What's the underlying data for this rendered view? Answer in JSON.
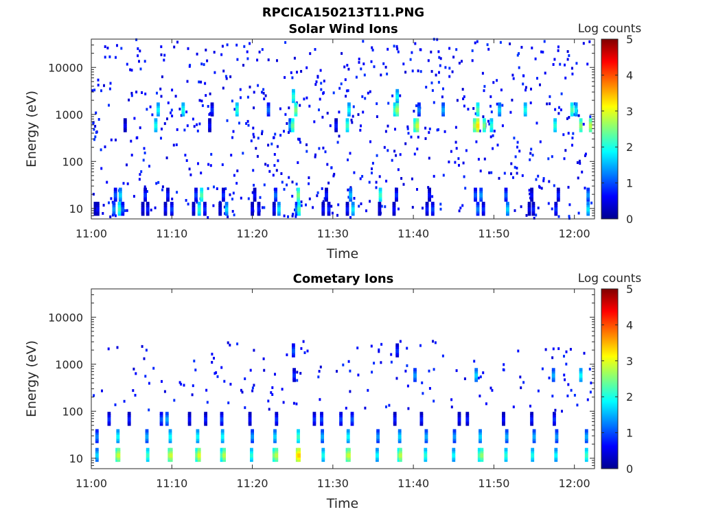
{
  "figure_title": "RPCICA150213T11.PNG",
  "chart_data": [
    {
      "type": "heatmap",
      "title": "Solar Wind Ions",
      "xlabel": "Time",
      "ylabel": "Energy (eV)",
      "x_ticks": [
        "11:00",
        "11:10",
        "11:20",
        "11:30",
        "11:40",
        "11:50",
        "12:00"
      ],
      "x_range_minutes": [
        0,
        62.5
      ],
      "y_scale": "log",
      "y_ticks": [
        "10",
        "100",
        "1000",
        "10000"
      ],
      "y_range": [
        6,
        40000
      ],
      "colorbar": {
        "label": "Log counts",
        "ticks": [
          "0",
          "1",
          "2",
          "3",
          "4",
          "5"
        ],
        "range": [
          0,
          5
        ],
        "colormap": "jet"
      },
      "energy_bands": [
        {
          "energy": 10,
          "points": [
            [
              0.3,
              0.5
            ],
            [
              0.6,
              0.8
            ],
            [
              2.6,
              1.5
            ],
            [
              3.3,
              2.3
            ],
            [
              3.7,
              1.2
            ],
            [
              6.2,
              0.6
            ],
            [
              6.8,
              0.9
            ],
            [
              9.0,
              0.8
            ],
            [
              9.8,
              1.1
            ],
            [
              12.5,
              0.7
            ],
            [
              13.2,
              2.2
            ],
            [
              13.9,
              1.0
            ],
            [
              15.8,
              0.6
            ],
            [
              16.6,
              1.8
            ],
            [
              19.8,
              0.7
            ],
            [
              20.6,
              0.9
            ],
            [
              22.5,
              0.8
            ],
            [
              23.1,
              1.9
            ],
            [
              25.3,
              1.4
            ],
            [
              25.6,
              2.4
            ],
            [
              28.6,
              0.8
            ],
            [
              29.3,
              1.0
            ],
            [
              31.6,
              0.9
            ],
            [
              32.3,
              1.9
            ],
            [
              35.6,
              0.6
            ],
            [
              37.4,
              0.8
            ],
            [
              41.5,
              0.9
            ],
            [
              42.2,
              1.1
            ],
            [
              47.8,
              1.4
            ],
            [
              48.5,
              1.0
            ],
            [
              51.5,
              1.8
            ],
            [
              54.2,
              0.7
            ],
            [
              54.7,
              0.9
            ],
            [
              57.5,
              1.0
            ],
            [
              61.5,
              1.9
            ]
          ]
        },
        {
          "energy": 20,
          "points": [
            [
              2.8,
              1.2
            ],
            [
              3.4,
              1.8
            ],
            [
              6.5,
              1.0
            ],
            [
              9.3,
              0.9
            ],
            [
              12.8,
              1.1
            ],
            [
              13.5,
              2.4
            ],
            [
              16.2,
              1.0
            ],
            [
              20.1,
              0.8
            ],
            [
              22.7,
              1.3
            ],
            [
              25.5,
              2.6
            ],
            [
              29.0,
              0.9
            ],
            [
              32.0,
              1.7
            ],
            [
              35.7,
              2.3
            ],
            [
              37.7,
              1.0
            ],
            [
              41.8,
              0.8
            ],
            [
              47.5,
              1.2
            ],
            [
              48.2,
              1.5
            ],
            [
              51.3,
              1.2
            ],
            [
              54.5,
              0.8
            ],
            [
              57.8,
              0.9
            ],
            [
              61.5,
              1.5
            ]
          ]
        },
        {
          "energy": 600,
          "points": [
            [
              4.0,
              0.7
            ],
            [
              7.8,
              2.1
            ],
            [
              14.5,
              0.8
            ],
            [
              24.5,
              1.6
            ],
            [
              24.8,
              2.5
            ],
            [
              30.2,
              0.9
            ],
            [
              31.6,
              2.3
            ],
            [
              40.0,
              2.5
            ],
            [
              40.3,
              3.0
            ],
            [
              47.4,
              2.8
            ],
            [
              47.8,
              3.4
            ],
            [
              48.6,
              2.6
            ],
            [
              49.5,
              2.2
            ],
            [
              57.4,
              2.2
            ],
            [
              60.6,
              2.7
            ],
            [
              61.8,
              2.9
            ]
          ]
        },
        {
          "energy": 1300,
          "points": [
            [
              8.1,
              2.0
            ],
            [
              11.2,
              2.1
            ],
            [
              14.8,
              1.0
            ],
            [
              17.9,
              2.2
            ],
            [
              21.8,
              1.3
            ],
            [
              25.2,
              2.6
            ],
            [
              31.8,
              2.0
            ],
            [
              37.5,
              2.3
            ],
            [
              37.8,
              2.8
            ],
            [
              40.5,
              1.4
            ],
            [
              43.5,
              1.6
            ],
            [
              47.8,
              2.4
            ],
            [
              50.5,
              1.8
            ],
            [
              53.7,
              2.1
            ],
            [
              59.5,
              2.4
            ],
            [
              60.0,
              1.9
            ]
          ]
        },
        {
          "energy": 2500,
          "points": [
            [
              24.9,
              2.2
            ],
            [
              37.8,
              2.0
            ]
          ]
        }
      ],
      "background": "sparse low counts (Log counts ~0.5) scattered across all energies"
    },
    {
      "type": "heatmap",
      "title": "Cometary Ions",
      "xlabel": "Time",
      "ylabel": "Energy (eV)",
      "x_ticks": [
        "11:00",
        "11:10",
        "11:20",
        "11:30",
        "11:40",
        "11:50",
        "12:00"
      ],
      "x_range_minutes": [
        0,
        62.5
      ],
      "y_scale": "log",
      "y_ticks": [
        "10",
        "100",
        "1000",
        "10000"
      ],
      "y_range": [
        6,
        40000
      ],
      "colorbar": {
        "label": "Log counts",
        "ticks": [
          "0",
          "1",
          "2",
          "3",
          "4",
          "5"
        ],
        "range": [
          0,
          5
        ],
        "colormap": "jet"
      },
      "energy_bands": [
        {
          "energy": 12,
          "points": [
            [
              0.5,
              1.8
            ],
            [
              3.0,
              2.7
            ],
            [
              3.2,
              3.0
            ],
            [
              6.8,
              2.3
            ],
            [
              9.5,
              2.8
            ],
            [
              9.7,
              3.0
            ],
            [
              12.9,
              2.6
            ],
            [
              13.2,
              3.1
            ],
            [
              16.0,
              2.4
            ],
            [
              16.3,
              2.9
            ],
            [
              19.7,
              2.2
            ],
            [
              22.5,
              2.6
            ],
            [
              22.8,
              2.9
            ],
            [
              25.4,
              3.3
            ],
            [
              25.6,
              3.5
            ],
            [
              28.6,
              2.1
            ],
            [
              31.6,
              2.8
            ],
            [
              31.8,
              3.0
            ],
            [
              35.3,
              2.0
            ],
            [
              38.0,
              2.5
            ],
            [
              38.2,
              2.9
            ],
            [
              41.3,
              2.2
            ],
            [
              44.8,
              2.0
            ],
            [
              48.0,
              2.4
            ],
            [
              48.3,
              2.7
            ],
            [
              51.3,
              2.2
            ],
            [
              54.6,
              2.1
            ],
            [
              57.5,
              2.0
            ],
            [
              61.3,
              2.3
            ]
          ]
        },
        {
          "energy": 30,
          "points": [
            [
              0.5,
              1.4
            ],
            [
              3.1,
              2.0
            ],
            [
              6.7,
              1.6
            ],
            [
              9.6,
              2.0
            ],
            [
              13.0,
              2.0
            ],
            [
              16.1,
              2.0
            ],
            [
              19.8,
              1.5
            ],
            [
              22.6,
              1.8
            ],
            [
              25.5,
              2.3
            ],
            [
              28.5,
              1.6
            ],
            [
              31.7,
              2.0
            ],
            [
              35.4,
              1.5
            ],
            [
              38.1,
              1.8
            ],
            [
              41.4,
              1.6
            ],
            [
              44.9,
              1.5
            ],
            [
              48.1,
              1.8
            ],
            [
              51.4,
              1.6
            ],
            [
              54.8,
              1.6
            ],
            [
              57.6,
              1.5
            ],
            [
              61.3,
              1.6
            ]
          ]
        },
        {
          "energy": 70,
          "points": [
            [
              2.0,
              1.0
            ],
            [
              4.5,
              0.9
            ],
            [
              8.5,
              1.2
            ],
            [
              9.2,
              1.6
            ],
            [
              12.0,
              0.8
            ],
            [
              14.0,
              0.9
            ],
            [
              16.0,
              1.1
            ],
            [
              19.5,
              0.8
            ],
            [
              22.8,
              1.0
            ],
            [
              27.5,
              1.0
            ],
            [
              28.4,
              1.1
            ],
            [
              30.8,
              1.1
            ],
            [
              32.2,
              1.2
            ],
            [
              37.5,
              0.9
            ],
            [
              40.8,
              0.9
            ],
            [
              45.5,
              0.8
            ],
            [
              46.5,
              0.9
            ],
            [
              51.0,
              0.8
            ],
            [
              54.5,
              0.9
            ],
            [
              57.3,
              1.0
            ]
          ]
        },
        {
          "energy": 600,
          "points": [
            [
              25.0,
              1.0
            ],
            [
              40.0,
              1.5
            ],
            [
              47.6,
              1.8
            ],
            [
              57.2,
              1.6
            ],
            [
              60.6,
              2.0
            ]
          ]
        },
        {
          "energy": 2000,
          "points": [
            [
              24.9,
              1.2
            ],
            [
              37.8,
              1.0
            ]
          ]
        }
      ],
      "background": "sparse low counts (Log counts ~0.5) at energies above 100 eV"
    }
  ]
}
